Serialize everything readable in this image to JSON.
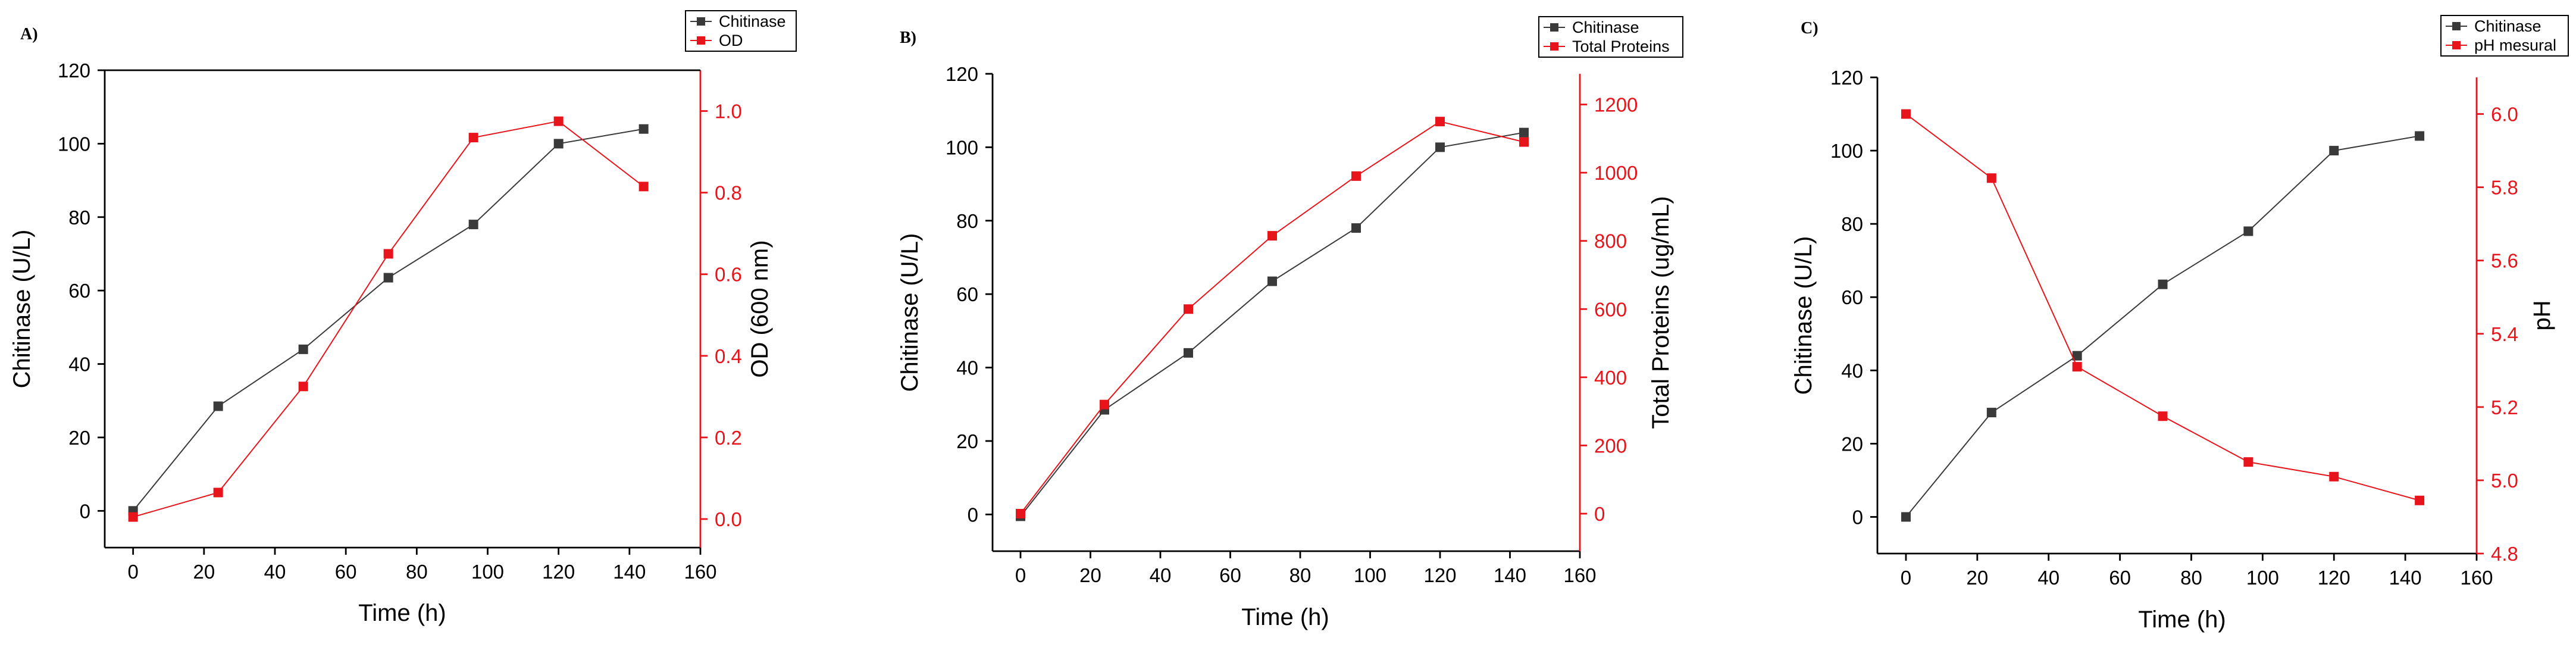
{
  "colors": {
    "chitinase": "#3a3a3a",
    "secondary": "#e8141c",
    "axis": "#000000"
  },
  "chart_data": [
    {
      "type": "line",
      "panel_label": "A)",
      "xlabel": "Time (h)",
      "ylabel": "Chitinase (U/L)",
      "y2label": "OD (600 nm)",
      "xlim": [
        -8,
        160
      ],
      "ylim": [
        -10,
        120
      ],
      "y2lim": [
        -0.07,
        1.1
      ],
      "xticks": [
        0,
        20,
        40,
        60,
        80,
        100,
        120,
        140,
        160
      ],
      "yticks": [
        0,
        20,
        40,
        60,
        80,
        100,
        120
      ],
      "y2ticks": [
        0.0,
        0.2,
        0.4,
        0.6,
        0.8,
        1.0
      ],
      "y2_tick_labels": [
        "0.0",
        "0.2",
        "0.4",
        "0.6",
        "0.8",
        "1.0"
      ],
      "x": [
        0,
        24,
        48,
        72,
        96,
        120,
        144
      ],
      "series": [
        {
          "name": "Chitinase",
          "axis": "left",
          "values": [
            0,
            28.5,
            44,
            63.5,
            78,
            100,
            104
          ]
        },
        {
          "name": "OD",
          "axis": "right",
          "values": [
            0.005,
            0.065,
            0.325,
            0.65,
            0.935,
            0.975,
            0.815
          ]
        }
      ],
      "legend_position": "top-right",
      "frame": "box"
    },
    {
      "type": "line",
      "panel_label": "B)",
      "xlabel": "Time (h)",
      "ylabel": "Chitinase (U/L)",
      "y2label": "Total Proteins (ug/mL)",
      "xlim": [
        -8,
        160
      ],
      "ylim": [
        -10,
        120
      ],
      "y2lim": [
        -110,
        1290
      ],
      "xticks": [
        0,
        20,
        40,
        60,
        80,
        100,
        120,
        140,
        160
      ],
      "yticks": [
        0,
        20,
        40,
        60,
        80,
        100,
        120
      ],
      "y2ticks": [
        0,
        200,
        400,
        600,
        800,
        1000,
        1200
      ],
      "y2_tick_labels": [
        "0",
        "200",
        "400",
        "600",
        "800",
        "1000",
        "1200"
      ],
      "x": [
        0,
        24,
        48,
        72,
        96,
        120,
        144
      ],
      "series": [
        {
          "name": "Chitinase",
          "axis": "left",
          "values": [
            -0.5,
            28.5,
            44,
            63.5,
            78,
            100,
            104
          ]
        },
        {
          "name": "Total Proteins",
          "axis": "right",
          "values": [
            0,
            320,
            600,
            815,
            990,
            1150,
            1090
          ]
        }
      ],
      "legend_position": "top-right",
      "frame": "open"
    },
    {
      "type": "line",
      "panel_label": "C)",
      "xlabel": "Time (h)",
      "ylabel": "Chitinase (U/L)",
      "y2label": "pH",
      "xlim": [
        -8,
        160
      ],
      "ylim": [
        -10,
        120
      ],
      "y2lim": [
        4.8,
        6.1
      ],
      "xticks": [
        0,
        20,
        40,
        60,
        80,
        100,
        120,
        140,
        160
      ],
      "yticks": [
        0,
        20,
        40,
        60,
        80,
        100,
        120
      ],
      "y2ticks": [
        4.8,
        5.0,
        5.2,
        5.4,
        5.6,
        5.8,
        6.0
      ],
      "y2_tick_labels": [
        "4.8",
        "5.0",
        "5.2",
        "5.4",
        "5.6",
        "5.8",
        "6.0"
      ],
      "x": [
        0,
        24,
        48,
        72,
        96,
        120,
        144
      ],
      "series": [
        {
          "name": "Chitinase",
          "axis": "left",
          "values": [
            0,
            28.5,
            44,
            63.5,
            78,
            100,
            104
          ]
        },
        {
          "name": "pH mesural",
          "axis": "right",
          "values": [
            6.0,
            5.825,
            5.31,
            5.175,
            5.05,
            5.01,
            4.945
          ]
        }
      ],
      "legend_position": "top-right",
      "frame": "open"
    }
  ]
}
